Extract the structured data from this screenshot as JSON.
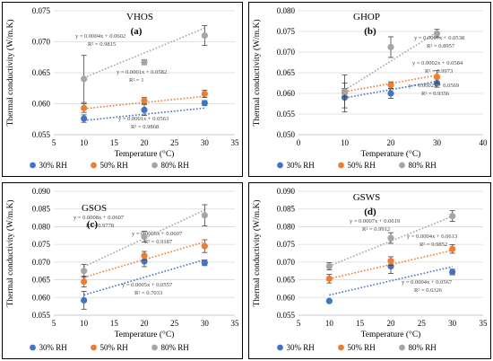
{
  "colors": {
    "rh30": "#4472C4",
    "rh50": "#ED7D31",
    "rh80": "#A5A5A5",
    "grid": "#D9D9D9",
    "frame": "#000000"
  },
  "chart_data": [
    {
      "type": "scatter",
      "title": "VHOS",
      "letter": "(a)",
      "xlabel": "Temperature (°C)",
      "ylabel": "Thermal conductivity (W/m.K)",
      "xlim": [
        5,
        35
      ],
      "ylim": [
        0.055,
        0.075
      ],
      "xticks": [
        "5",
        "10",
        "15",
        "20",
        "25",
        "30",
        "35"
      ],
      "yticks": [
        "0.055",
        "0.060",
        "0.065",
        "0.070",
        "0.075"
      ],
      "grid": true,
      "legend_position": "bottom",
      "series": [
        {
          "name": "30% RH",
          "x": [
            10,
            20,
            30
          ],
          "y": [
            0.0576,
            0.059,
            0.0601
          ],
          "err": [
            0.0006,
            0.0009,
            0.0004
          ],
          "trend": [
            0.0001,
            0.0563
          ],
          "eq": "y = 0.0001x + 0.0563",
          "r2": "R² = 0.9868"
        },
        {
          "name": "50% RH",
          "x": [
            10,
            20,
            30
          ],
          "y": [
            0.0593,
            0.0605,
            0.0616
          ],
          "err": [
            0.0007,
            0.0005,
            0.0006
          ],
          "trend": [
            0.0001,
            0.0582
          ],
          "eq": "y = 0.0001x + 0.0582",
          "r2": "R² = 1"
        },
        {
          "name": "80% RH",
          "x": [
            10,
            20,
            30
          ],
          "y": [
            0.064,
            0.0667,
            0.071
          ],
          "err": [
            0.0038,
            0.0004,
            0.0016
          ],
          "trend": [
            0.0004,
            0.0602
          ],
          "eq": "y = 0.0004x + 0.0602",
          "r2": "R² = 0.9815"
        }
      ]
    },
    {
      "type": "scatter",
      "title": "GHOP",
      "letter": "(b)",
      "xlabel": "Temperature (°C)",
      "ylabel": "Thermal conductivity (W/m.K)",
      "xlim": [
        0,
        40
      ],
      "ylim": [
        0.05,
        0.08
      ],
      "xticks": [
        "0",
        "10",
        "20",
        "30",
        "40"
      ],
      "yticks": [
        "0.050",
        "0.055",
        "0.060",
        "0.065",
        "0.070",
        "0.075",
        "0.080"
      ],
      "grid": true,
      "legend_position": "bottom",
      "series": [
        {
          "name": "30% RH",
          "x": [
            10,
            20,
            30
          ],
          "y": [
            0.059,
            0.06,
            0.0625
          ],
          "err": [
            0.0035,
            0.0012,
            0.001
          ],
          "trend": [
            0.0002,
            0.0569
          ],
          "eq": "y = 0.0002x + 0.0569",
          "r2": "R² = 0.9356"
        },
        {
          "name": "50% RH",
          "x": [
            10,
            20,
            30
          ],
          "y": [
            0.0602,
            0.062,
            0.064
          ],
          "err": [
            0.001,
            0.0008,
            0.0015
          ],
          "trend": [
            0.0002,
            0.0584
          ],
          "eq": "y = 0.0002x + 0.0584",
          "r2": "R² = 0.9973"
        },
        {
          "name": "80% RH",
          "x": [
            10,
            20,
            30
          ],
          "y": [
            0.0605,
            0.0712,
            0.0745
          ],
          "err": [
            0.004,
            0.0025,
            0.001
          ],
          "trend": [
            0.0007,
            0.0538
          ],
          "eq": "y = 0.0007x + 0.0538",
          "r2": "R² = 0.8957"
        }
      ]
    },
    {
      "type": "scatter",
      "title": "GSOS",
      "letter": "(c)",
      "xlabel": "Temperature (°C)",
      "ylabel": "Thermal conductivity (W/m.K)",
      "xlim": [
        5,
        35
      ],
      "ylim": [
        0.055,
        0.09
      ],
      "xticks": [
        "5",
        "10",
        "15",
        "20",
        "25",
        "30",
        "35"
      ],
      "yticks": [
        "0.055",
        "0.060",
        "0.065",
        "0.070",
        "0.075",
        "0.080",
        "0.085",
        "0.090"
      ],
      "grid": true,
      "legend_position": "bottom",
      "series": [
        {
          "name": "30% RH",
          "x": [
            10,
            20,
            30
          ],
          "y": [
            0.0592,
            0.0702,
            0.0698
          ],
          "err": [
            0.0025,
            0.0015,
            0.0008
          ],
          "trend": [
            0.0005,
            0.0557
          ],
          "eq": "y = 0.0005x + 0.0557",
          "r2": "R² = 0.7033"
        },
        {
          "name": "50% RH",
          "x": [
            10,
            20,
            30
          ],
          "y": [
            0.0645,
            0.0718,
            0.0745
          ],
          "err": [
            0.0015,
            0.0012,
            0.0018
          ],
          "trend": [
            0.0005,
            0.0607
          ],
          "eq": "y = 0.0005x + 0.0607",
          "r2": "R² = 0.9187"
        },
        {
          "name": "80% RH",
          "x": [
            10,
            20,
            30
          ],
          "y": [
            0.0675,
            0.0772,
            0.0832
          ],
          "err": [
            0.0018,
            0.0015,
            0.003
          ],
          "trend": [
            0.0008,
            0.0607
          ],
          "eq": "y = 0.0008x + 0.0607",
          "r2": "R² = 0.9778"
        }
      ]
    },
    {
      "type": "scatter",
      "title": "GSWS",
      "letter": "(d)",
      "xlabel": "Temperature (°C)",
      "ylabel": "Thermal conductivity (W/m.K)",
      "xlim": [
        5,
        35
      ],
      "ylim": [
        0.055,
        0.09
      ],
      "xticks": [
        "5",
        "10",
        "15",
        "20",
        "25",
        "30",
        "35"
      ],
      "yticks": [
        "0.055",
        "0.060",
        "0.065",
        "0.070",
        "0.075",
        "0.080",
        "0.085",
        "0.090"
      ],
      "grid": true,
      "legend_position": "bottom",
      "series": [
        {
          "name": "30% RH",
          "x": [
            10,
            20,
            30
          ],
          "y": [
            0.059,
            0.0688,
            0.0672
          ],
          "err": [
            0.0004,
            0.002,
            0.0008
          ],
          "trend": [
            0.0004,
            0.0567
          ],
          "eq": "y = 0.0004x + 0.0567",
          "r2": "R² = 0.6326"
        },
        {
          "name": "50% RH",
          "x": [
            10,
            20,
            30
          ],
          "y": [
            0.0653,
            0.0703,
            0.0737
          ],
          "err": [
            0.0012,
            0.0012,
            0.0012
          ],
          "trend": [
            0.0004,
            0.0613
          ],
          "eq": "y = 0.0004x + 0.0613",
          "r2": "R² = 0.9852"
        },
        {
          "name": "80% RH",
          "x": [
            10,
            20,
            30
          ],
          "y": [
            0.0688,
            0.0768,
            0.083
          ],
          "err": [
            0.001,
            0.0015,
            0.0015
          ],
          "trend": [
            0.0007,
            0.0619
          ],
          "eq": "y = 0.0007x + 0.0619",
          "r2": "R² = 0.9912"
        }
      ]
    }
  ]
}
